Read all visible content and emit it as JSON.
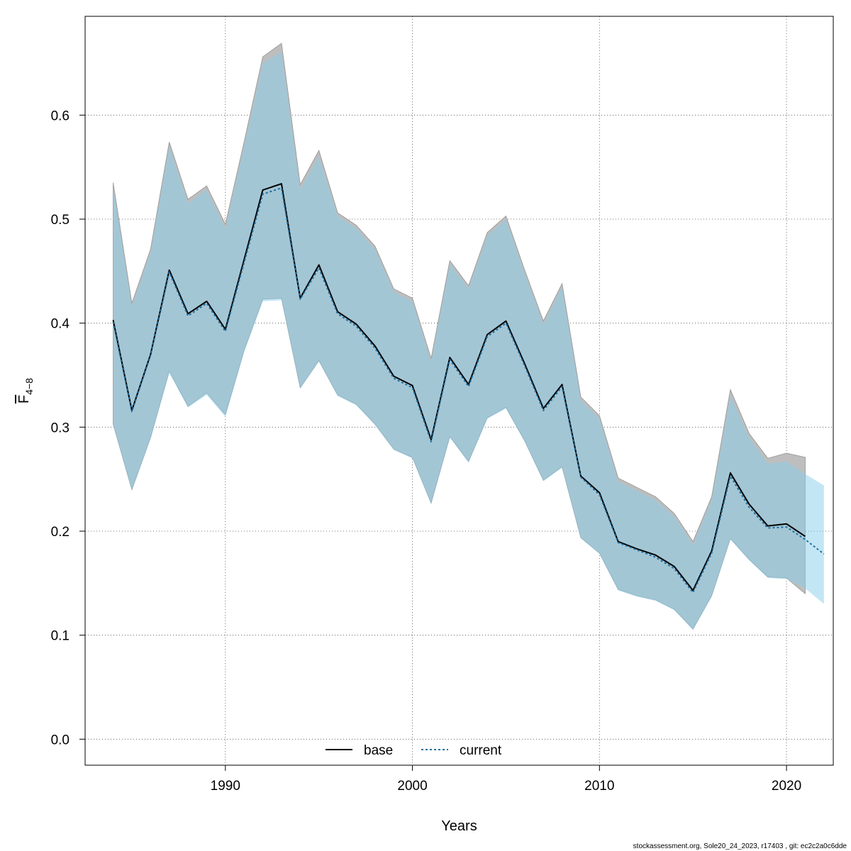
{
  "chart_data": {
    "type": "area",
    "xlabel": "Years",
    "ylabel": "F",
    "ylabel_subscript": "4−8",
    "xlim": [
      1982.5,
      2022.5
    ],
    "ylim": [
      -0.025,
      0.695
    ],
    "x_ticks": [
      1990,
      2000,
      2010,
      2020
    ],
    "y_ticks": [
      0.0,
      0.1,
      0.2,
      0.3,
      0.4,
      0.5,
      0.6
    ],
    "y_tick_labels": [
      "0.0",
      "0.1",
      "0.2",
      "0.3",
      "0.4",
      "0.5",
      "0.6"
    ],
    "grid": true,
    "legend_placement": "bottom",
    "footer": "stockassessment.org, Sole20_24_2023, r17403 , git: ec2c2a0c6dde",
    "colors": {
      "base_band": "#bebebe",
      "base_band_edge": "#9e9e9e",
      "current_band": "#87ceeb",
      "base_line": "#000000",
      "current_line": "#1f6f9f"
    },
    "series": [
      {
        "name": "base",
        "line_style": "solid",
        "x": [
          1984,
          1985,
          1986,
          1987,
          1988,
          1989,
          1990,
          1991,
          1992,
          1993,
          1994,
          1995,
          1996,
          1997,
          1998,
          1999,
          2000,
          2001,
          2002,
          2003,
          2004,
          2005,
          2006,
          2007,
          2008,
          2009,
          2010,
          2011,
          2012,
          2013,
          2014,
          2015,
          2016,
          2017,
          2018,
          2019,
          2020,
          2021
        ],
        "y": [
          0.403,
          0.316,
          0.37,
          0.451,
          0.409,
          0.421,
          0.394,
          0.461,
          0.528,
          0.534,
          0.424,
          0.456,
          0.411,
          0.399,
          0.378,
          0.349,
          0.34,
          0.288,
          0.367,
          0.341,
          0.389,
          0.402,
          0.361,
          0.318,
          0.341,
          0.253,
          0.237,
          0.19,
          0.183,
          0.177,
          0.166,
          0.143,
          0.181,
          0.256,
          0.226,
          0.205,
          0.207,
          0.195
        ],
        "lower": [
          0.303,
          0.24,
          0.29,
          0.354,
          0.32,
          0.333,
          0.312,
          0.374,
          0.423,
          0.424,
          0.338,
          0.364,
          0.331,
          0.322,
          0.303,
          0.279,
          0.271,
          0.227,
          0.291,
          0.267,
          0.309,
          0.319,
          0.287,
          0.249,
          0.262,
          0.194,
          0.179,
          0.144,
          0.138,
          0.134,
          0.125,
          0.106,
          0.138,
          0.193,
          0.173,
          0.156,
          0.155,
          0.14
        ],
        "upper": [
          0.535,
          0.419,
          0.471,
          0.574,
          0.519,
          0.532,
          0.495,
          0.574,
          0.656,
          0.669,
          0.533,
          0.566,
          0.506,
          0.494,
          0.474,
          0.433,
          0.424,
          0.366,
          0.46,
          0.436,
          0.487,
          0.503,
          0.451,
          0.402,
          0.438,
          0.329,
          0.311,
          0.251,
          0.242,
          0.233,
          0.217,
          0.19,
          0.233,
          0.336,
          0.294,
          0.27,
          0.275,
          0.271
        ]
      },
      {
        "name": "current",
        "line_style": "dotted",
        "x": [
          1984,
          1985,
          1986,
          1987,
          1988,
          1989,
          1990,
          1991,
          1992,
          1993,
          1994,
          1995,
          1996,
          1997,
          1998,
          1999,
          2000,
          2001,
          2002,
          2003,
          2004,
          2005,
          2006,
          2007,
          2008,
          2009,
          2010,
          2011,
          2012,
          2013,
          2014,
          2015,
          2016,
          2017,
          2018,
          2019,
          2020,
          2021,
          2022
        ],
        "y": [
          0.401,
          0.315,
          0.369,
          0.449,
          0.407,
          0.419,
          0.392,
          0.458,
          0.524,
          0.53,
          0.423,
          0.453,
          0.409,
          0.397,
          0.376,
          0.347,
          0.338,
          0.286,
          0.365,
          0.339,
          0.387,
          0.4,
          0.359,
          0.316,
          0.339,
          0.252,
          0.235,
          0.189,
          0.182,
          0.175,
          0.164,
          0.141,
          0.179,
          0.253,
          0.223,
          0.203,
          0.204,
          0.192,
          0.178
        ],
        "lower": [
          0.302,
          0.239,
          0.289,
          0.352,
          0.319,
          0.331,
          0.31,
          0.372,
          0.421,
          0.422,
          0.337,
          0.363,
          0.33,
          0.321,
          0.302,
          0.278,
          0.27,
          0.226,
          0.29,
          0.266,
          0.308,
          0.318,
          0.286,
          0.248,
          0.261,
          0.193,
          0.178,
          0.143,
          0.137,
          0.133,
          0.124,
          0.105,
          0.137,
          0.192,
          0.172,
          0.155,
          0.154,
          0.145,
          0.13
        ],
        "upper": [
          0.532,
          0.416,
          0.468,
          0.57,
          0.515,
          0.528,
          0.491,
          0.57,
          0.65,
          0.661,
          0.529,
          0.56,
          0.503,
          0.491,
          0.471,
          0.43,
          0.421,
          0.363,
          0.457,
          0.433,
          0.484,
          0.5,
          0.448,
          0.399,
          0.435,
          0.326,
          0.308,
          0.248,
          0.239,
          0.23,
          0.214,
          0.187,
          0.23,
          0.33,
          0.29,
          0.265,
          0.267,
          0.255,
          0.244
        ]
      }
    ]
  }
}
